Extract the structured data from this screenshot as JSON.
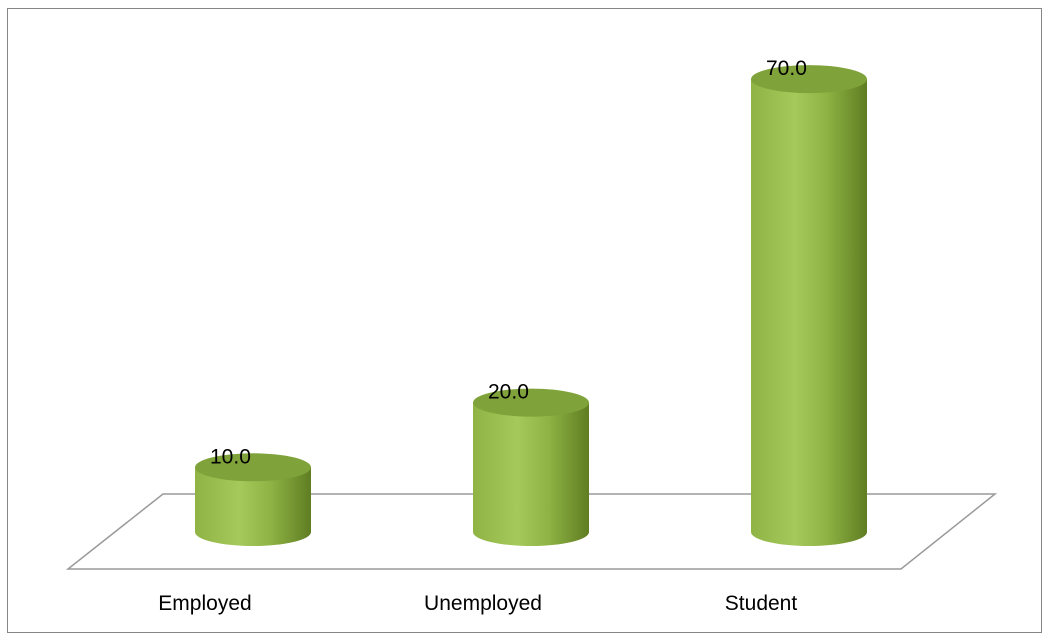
{
  "chart_data": {
    "type": "bar",
    "style": "3d-cylinder",
    "categories": [
      "Employed",
      "Unemployed",
      "Student"
    ],
    "values": [
      10.0,
      20.0,
      70.0
    ],
    "data_labels": [
      "10.0",
      "20.0",
      "70.0"
    ],
    "title": "",
    "xlabel": "",
    "ylabel": "",
    "ylim": [
      0,
      80
    ],
    "grid": false,
    "legend": "none",
    "colors": {
      "bar_light": "#a6c95c",
      "bar_mid": "#8fb344",
      "bar_dark": "#5f7d22",
      "bar_top": "#7fa33a",
      "floor_line": "#9a9a9a",
      "frame": "#868686"
    }
  }
}
